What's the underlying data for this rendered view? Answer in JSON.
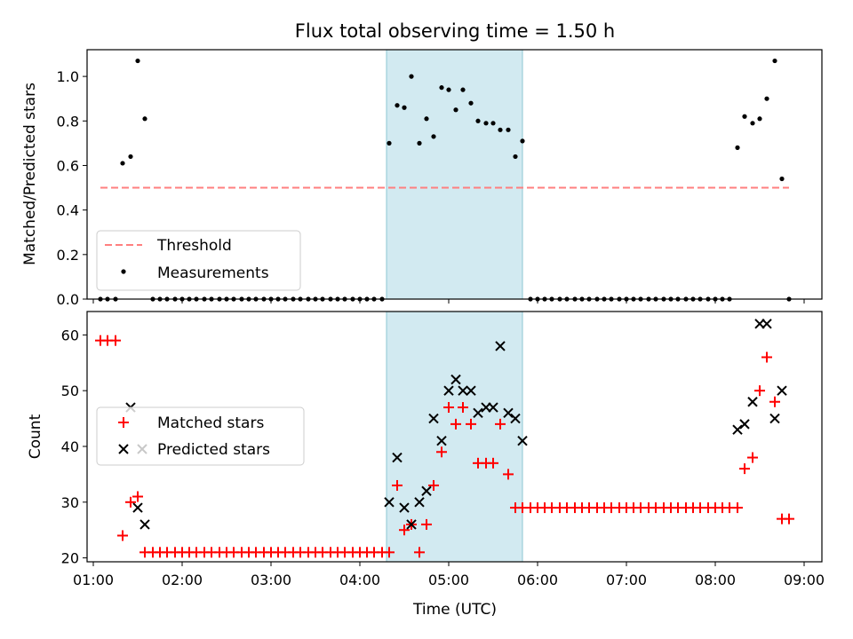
{
  "title": "Flux total observing time = 1.50 h",
  "colors": {
    "threshold": "#ff7f7f",
    "span": "#add8e6",
    "matched": "#ff0000",
    "predicted": "#000000",
    "measure": "#000000"
  },
  "chart_data": [
    {
      "type": "scatter",
      "panel": "top",
      "title": "Flux total observing time = 1.50 h",
      "xlabel": "",
      "ylabel": "Matched/Predicted stars",
      "xlim": [
        0.93,
        9.2
      ],
      "ylim": [
        0,
        1.12
      ],
      "x_ticks": [
        1,
        2,
        3,
        4,
        5,
        6,
        7,
        8,
        9
      ],
      "y_ticks": [
        "0.0",
        "0.2",
        "0.4",
        "0.6",
        "0.8",
        "1.0"
      ],
      "legend": {
        "placement": "lower-left",
        "entries": [
          "Threshold",
          "Measurements"
        ]
      },
      "highlight_span": [
        4.3,
        5.83
      ],
      "threshold": {
        "name": "Threshold",
        "y": 0.5,
        "x_range": [
          1.08,
          8.83
        ]
      },
      "measurements": {
        "name": "Measurements",
        "x": [
          1.08,
          1.16,
          1.25,
          1.33,
          1.42,
          1.5,
          1.58,
          1.67,
          1.75,
          1.83,
          1.92,
          2.0,
          2.08,
          2.16,
          2.25,
          2.33,
          2.42,
          2.5,
          2.58,
          2.67,
          2.75,
          2.83,
          2.92,
          3.0,
          3.08,
          3.16,
          3.25,
          3.33,
          3.42,
          3.5,
          3.58,
          3.67,
          3.75,
          3.83,
          3.92,
          4.0,
          4.08,
          4.16,
          4.25,
          4.33,
          4.42,
          4.5,
          4.58,
          4.67,
          4.75,
          4.83,
          4.92,
          5.0,
          5.08,
          5.16,
          5.25,
          5.33,
          5.42,
          5.5,
          5.58,
          5.67,
          5.75,
          5.83,
          5.92,
          6.0,
          6.08,
          6.16,
          6.25,
          6.33,
          6.42,
          6.5,
          6.58,
          6.67,
          6.75,
          6.83,
          6.92,
          7.0,
          7.08,
          7.16,
          7.25,
          7.33,
          7.42,
          7.5,
          7.58,
          7.67,
          7.75,
          7.83,
          7.92,
          8.0,
          8.08,
          8.16,
          8.25,
          8.33,
          8.42,
          8.5,
          8.58,
          8.67,
          8.75,
          8.83
        ],
        "y": [
          0,
          0,
          0,
          0.61,
          0.64,
          1.07,
          0.81,
          0,
          0,
          0,
          0,
          0,
          0,
          0,
          0,
          0,
          0,
          0,
          0,
          0,
          0,
          0,
          0,
          0,
          0,
          0,
          0,
          0,
          0,
          0,
          0,
          0,
          0,
          0,
          0,
          0,
          0,
          0,
          0,
          0.7,
          0.87,
          0.86,
          1.0,
          0.7,
          0.81,
          0.73,
          0.95,
          0.94,
          0.85,
          0.94,
          0.88,
          0.8,
          0.79,
          0.79,
          0.76,
          0.76,
          0.64,
          0.71,
          0,
          0,
          0,
          0,
          0,
          0,
          0,
          0,
          0,
          0,
          0,
          0,
          0,
          0,
          0,
          0,
          0,
          0,
          0,
          0,
          0,
          0,
          0,
          0,
          0,
          0,
          0,
          0,
          0.68,
          0.82,
          0.79,
          0.81,
          0.9,
          1.07,
          0.54,
          0
        ]
      }
    },
    {
      "type": "scatter",
      "panel": "bottom",
      "xlabel": "Time (UTC)",
      "ylabel": "Count",
      "xlim": [
        0.93,
        9.2
      ],
      "ylim": [
        19.3,
        64.2
      ],
      "x_ticks": [
        "01:00",
        "02:00",
        "03:00",
        "04:00",
        "05:00",
        "06:00",
        "07:00",
        "08:00",
        "09:00"
      ],
      "y_ticks": [
        "20",
        "30",
        "40",
        "50",
        "60"
      ],
      "legend": {
        "placement": "center-left",
        "entries": [
          "Matched stars",
          "Predicted stars"
        ]
      },
      "highlight_span": [
        4.3,
        5.83
      ],
      "series": [
        {
          "name": "Matched stars",
          "marker": "+",
          "x": [
            1.08,
            1.16,
            1.25,
            1.33,
            1.42,
            1.5,
            1.58,
            1.67,
            1.75,
            1.83,
            1.92,
            2.0,
            2.08,
            2.16,
            2.25,
            2.33,
            2.42,
            2.5,
            2.58,
            2.67,
            2.75,
            2.83,
            2.92,
            3.0,
            3.08,
            3.16,
            3.25,
            3.33,
            3.42,
            3.5,
            3.58,
            3.67,
            3.75,
            3.83,
            3.92,
            4.0,
            4.08,
            4.16,
            4.25,
            4.33,
            4.42,
            4.5,
            4.58,
            4.67,
            4.75,
            4.83,
            4.92,
            5.0,
            5.08,
            5.16,
            5.25,
            5.33,
            5.42,
            5.5,
            5.58,
            5.67,
            5.75,
            5.83,
            5.92,
            6.0,
            6.08,
            6.16,
            6.25,
            6.33,
            6.42,
            6.5,
            6.58,
            6.67,
            6.75,
            6.83,
            6.92,
            7.0,
            7.08,
            7.16,
            7.25,
            7.33,
            7.42,
            7.5,
            7.58,
            7.67,
            7.75,
            7.83,
            7.92,
            8.0,
            8.08,
            8.16,
            8.25,
            8.33,
            8.42,
            8.5,
            8.58,
            8.67,
            8.75,
            8.83
          ],
          "y": [
            59,
            59,
            59,
            24,
            30,
            31,
            21,
            21,
            21,
            21,
            21,
            21,
            21,
            21,
            21,
            21,
            21,
            21,
            21,
            21,
            21,
            21,
            21,
            21,
            21,
            21,
            21,
            21,
            21,
            21,
            21,
            21,
            21,
            21,
            21,
            21,
            21,
            21,
            21,
            21,
            33,
            25,
            26,
            21,
            26,
            33,
            39,
            47,
            44,
            47,
            44,
            37,
            37,
            37,
            44,
            35,
            29,
            29,
            29,
            29,
            29,
            29,
            29,
            29,
            29,
            29,
            29,
            29,
            29,
            29,
            29,
            29,
            29,
            29,
            29,
            29,
            29,
            29,
            29,
            29,
            29,
            29,
            29,
            29,
            29,
            29,
            29,
            36,
            38,
            50,
            56,
            48,
            27,
            27
          ]
        },
        {
          "name": "Predicted stars",
          "marker": "x",
          "x": [
            1.42,
            1.5,
            1.58,
            4.33,
            4.42,
            4.5,
            4.58,
            4.67,
            4.75,
            4.83,
            4.92,
            5.0,
            5.08,
            5.16,
            5.25,
            5.33,
            5.42,
            5.5,
            5.58,
            5.67,
            5.75,
            5.83,
            8.25,
            8.33,
            8.42,
            8.5,
            8.58,
            8.67,
            8.75
          ],
          "y": [
            47,
            29,
            26,
            30,
            38,
            29,
            26,
            30,
            32,
            45,
            41,
            50,
            52,
            50,
            50,
            46,
            47,
            47,
            58,
            46,
            45,
            41,
            43,
            44,
            48,
            62,
            62,
            45,
            50
          ]
        }
      ]
    }
  ]
}
